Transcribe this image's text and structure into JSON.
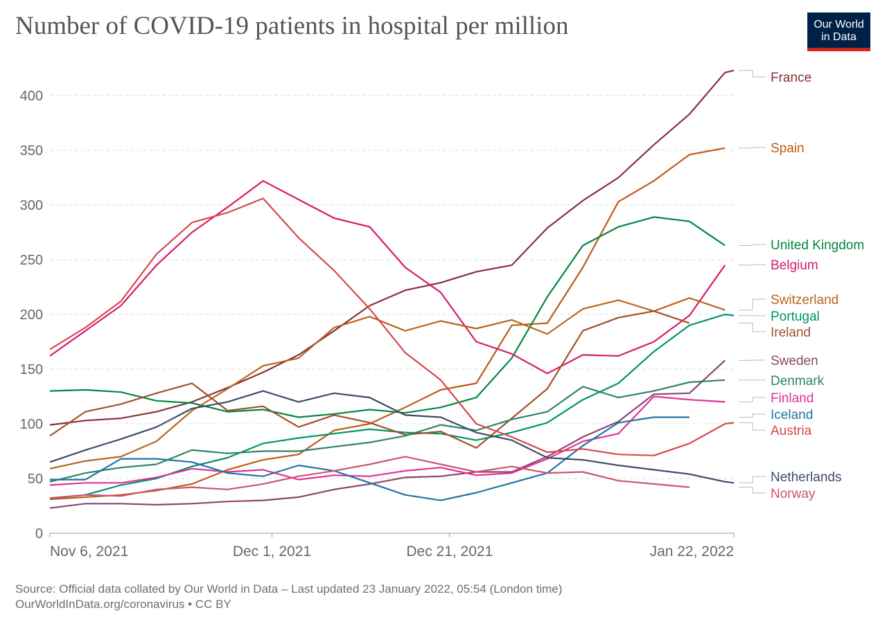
{
  "header": {
    "title": "Number of COVID-19 patients in hospital per million",
    "logo_line1": "Our World",
    "logo_line2": "in Data"
  },
  "footer": {
    "source": "Source: Official data collated by Our World in Data – Last updated 23 January 2022, 05:54 (London time)",
    "credit": "OurWorldInData.org/coronavirus • CC BY"
  },
  "chart_data": {
    "type": "line",
    "title": "Number of COVID-19 patients in hospital per million",
    "xlabel": "",
    "ylabel": "",
    "ylim": [
      0,
      400
    ],
    "grid": "horizontal dashed",
    "legend": "right (inline labels at line ends)",
    "y_ticks": [
      0,
      50,
      100,
      150,
      200,
      250,
      300,
      350,
      400
    ],
    "x_ticks": [
      {
        "date": "2021-11-06",
        "label": "Nov 6, 2021"
      },
      {
        "date": "2021-12-01",
        "label": "Dec 1, 2021"
      },
      {
        "date": "2021-12-21",
        "label": "Dec 21, 2021"
      },
      {
        "date": "2022-01-22",
        "label": "Jan 22, 2022"
      }
    ],
    "x": [
      "2021-11-06",
      "2021-11-10",
      "2021-11-14",
      "2021-11-18",
      "2021-11-22",
      "2021-11-26",
      "2021-11-30",
      "2021-12-04",
      "2021-12-08",
      "2021-12-12",
      "2021-12-16",
      "2021-12-20",
      "2021-12-24",
      "2021-12-28",
      "2022-01-01",
      "2022-01-05",
      "2022-01-09",
      "2022-01-13",
      "2022-01-17",
      "2022-01-21",
      "2022-01-22"
    ],
    "series": [
      {
        "name": "France",
        "color": "#883039",
        "values": [
          99,
          103,
          105,
          111,
          120,
          133,
          147,
          163,
          185,
          208,
          222,
          229,
          239,
          245,
          279,
          304,
          325,
          355,
          383,
          421,
          423
        ]
      },
      {
        "name": "Spain",
        "color": "#c05917",
        "values": [
          31,
          33,
          35,
          39,
          45,
          58,
          67,
          72,
          94,
          100,
          115,
          131,
          137,
          190,
          192,
          243,
          303,
          322,
          346,
          352,
          null
        ]
      },
      {
        "name": "United Kingdom",
        "color": "#00873f",
        "values": [
          130,
          131,
          129,
          121,
          119,
          111,
          113,
          106,
          109,
          113,
          110,
          115,
          124,
          160,
          216,
          263,
          280,
          289,
          285,
          263,
          null
        ]
      },
      {
        "name": "Belgium",
        "color": "#d6186f",
        "values": [
          162,
          185,
          208,
          245,
          275,
          298,
          322,
          305,
          288,
          280,
          243,
          220,
          175,
          164,
          146,
          163,
          162,
          175,
          199,
          245,
          null
        ]
      },
      {
        "name": "Switzerland",
        "color": "#b8651c",
        "values": [
          59,
          66,
          70,
          84,
          112,
          132,
          153,
          160,
          188,
          198,
          185,
          194,
          187,
          195,
          182,
          205,
          213,
          203,
          215,
          204,
          null
        ]
      },
      {
        "name": "Portugal",
        "color": "#00936b",
        "values": [
          32,
          35,
          44,
          50,
          61,
          69,
          82,
          87,
          91,
          95,
          92,
          91,
          85,
          92,
          101,
          122,
          137,
          166,
          190,
          200,
          199
        ]
      },
      {
        "name": "Ireland",
        "color": "#a0502b",
        "values": [
          89,
          111,
          118,
          128,
          137,
          112,
          116,
          97,
          108,
          101,
          90,
          93,
          78,
          105,
          132,
          185,
          197,
          203,
          192,
          null,
          null
        ]
      },
      {
        "name": "Sweden",
        "color": "#8c4569",
        "values": [
          23,
          27,
          27,
          26,
          27,
          29,
          30,
          33,
          40,
          45,
          51,
          52,
          56,
          56,
          70,
          88,
          102,
          127,
          128,
          158,
          null
        ]
      },
      {
        "name": "Denmark",
        "color": "#2c8465",
        "values": [
          47,
          55,
          60,
          63,
          76,
          73,
          75,
          75,
          79,
          83,
          89,
          99,
          94,
          104,
          111,
          134,
          124,
          130,
          138,
          140,
          null
        ]
      },
      {
        "name": "Finland",
        "color": "#e0309a",
        "values": [
          44,
          46,
          46,
          51,
          59,
          56,
          58,
          49,
          53,
          52,
          57,
          60,
          53,
          55,
          68,
          84,
          91,
          125,
          122,
          120,
          null
        ]
      },
      {
        "name": "Iceland",
        "color": "#1f74a6",
        "values": [
          49,
          49,
          68,
          68,
          65,
          55,
          52,
          62,
          57,
          46,
          35,
          30,
          37,
          46,
          55,
          80,
          101,
          106,
          106,
          null,
          null
        ]
      },
      {
        "name": "Austria",
        "color": "#d8464d",
        "values": [
          168,
          188,
          212,
          255,
          284,
          293,
          306,
          270,
          240,
          205,
          165,
          140,
          100,
          88,
          74,
          77,
          72,
          71,
          82,
          100,
          101
        ]
      },
      {
        "name": "Netherlands",
        "color": "#3d4b67",
        "values": [
          65,
          76,
          86,
          97,
          114,
          120,
          130,
          120,
          128,
          124,
          108,
          106,
          92,
          85,
          69,
          67,
          62,
          58,
          54,
          47,
          46
        ]
      },
      {
        "name": "Norway",
        "color": "#c9566e",
        "values": [
          32,
          35,
          34,
          40,
          42,
          40,
          45,
          52,
          57,
          63,
          70,
          63,
          56,
          61,
          55,
          56,
          48,
          45,
          42,
          null,
          null
        ]
      }
    ]
  }
}
